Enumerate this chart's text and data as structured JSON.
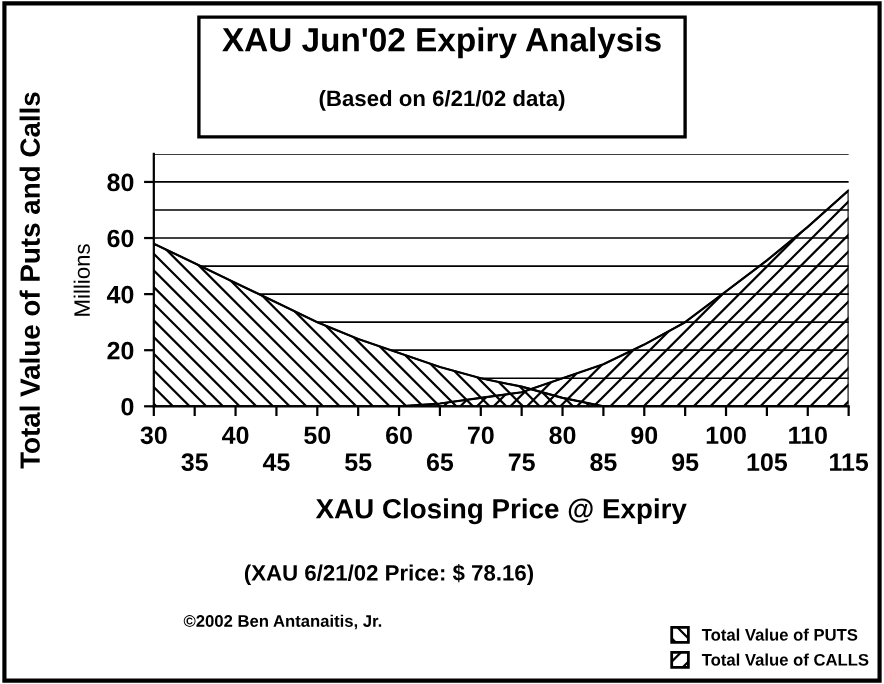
{
  "chart_data": {
    "type": "area",
    "title": "XAU Jun'02 Expiry Analysis",
    "subtitle": "(Based on 6/21/02 data)",
    "xlabel": "XAU Closing Price @ Expiry",
    "ylabel": "Total Value of Puts and Calls",
    "annotations": [
      "Millions",
      "(XAU 6/21/02 Price: $ 78.16)",
      "©2002 Ben Antanaitis, Jr."
    ],
    "categories": [
      "30",
      "35",
      "40",
      "45",
      "50",
      "55",
      "60",
      "65",
      "70",
      "75",
      "80",
      "85",
      "90",
      "95",
      "100",
      "105",
      "110",
      "115"
    ],
    "series": [
      {
        "name": "Total Value of PUTS",
        "color": "#000000",
        "values": [
          58,
          51,
          44,
          37,
          30,
          24,
          19,
          14,
          10,
          7,
          3,
          0,
          0,
          0,
          0,
          0,
          0,
          0
        ]
      },
      {
        "name": "Total Value of CALLS",
        "color": "#000000",
        "values": [
          0,
          0,
          0,
          0,
          0,
          0,
          0,
          1,
          3,
          5,
          10,
          15,
          22,
          30,
          41,
          52,
          64,
          77
        ]
      }
    ],
    "ylim": [
      0,
      90
    ],
    "yticks": [
      0,
      20,
      40,
      60,
      80
    ],
    "grid": "y",
    "legend": "bottom right"
  }
}
